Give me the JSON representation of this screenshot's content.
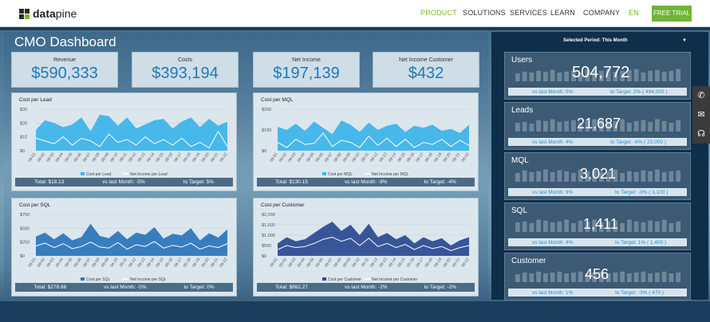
{
  "nav": {
    "brand_bold": "data",
    "brand_light": "pine",
    "product": "PRODUCT",
    "solutions": "SOLUTIONS",
    "services": "SERVICES",
    "learn": "LEARN",
    "company": "COMPANY",
    "lang": "EN",
    "trial": "FREE TRIAL"
  },
  "dashboard": {
    "title": "CMO Dashboard",
    "period": "Selected Period: This Month"
  },
  "kpis": [
    {
      "label": "Revenue",
      "value": "$590,333"
    },
    {
      "label": "Costs",
      "value": "$393,194"
    },
    {
      "label": "Net Income",
      "value": "$197,139"
    },
    {
      "label": "Net Income Customer",
      "value": "$432"
    }
  ],
  "chart_data": [
    {
      "type": "area",
      "title": "Cost per Lead",
      "categories": [
        "09-01",
        "09-02",
        "09-03",
        "09-04",
        "09-05",
        "09-06",
        "09-07",
        "09-08",
        "09-09",
        "09-10",
        "09-11",
        "09-12",
        "09-13",
        "09-14",
        "09-15",
        "09-16",
        "09-17",
        "09-18",
        "09-19",
        "09-20",
        "09-21",
        "09-22"
      ],
      "yticks": [
        "$30",
        "$20",
        "$10",
        "$0"
      ],
      "ylim": [
        0,
        30
      ],
      "series": [
        {
          "name": "Cost per Lead",
          "type": "area",
          "values": [
            15,
            22,
            20,
            17,
            19,
            24,
            14,
            26,
            25,
            18,
            24,
            16,
            19,
            22,
            23,
            16,
            21,
            24,
            17,
            23,
            18,
            21
          ]
        },
        {
          "name": "Net Income per Lead",
          "type": "line",
          "values": [
            9,
            7,
            5,
            10,
            4,
            9,
            7,
            3,
            12,
            6,
            8,
            4,
            10,
            5,
            8,
            4,
            9,
            3,
            6,
            2,
            14,
            3
          ]
        }
      ],
      "footer": {
        "total": "Total: $18.13",
        "vs_last": "vs last Month: -5%",
        "target": "to Target: 5%"
      }
    },
    {
      "type": "area",
      "title": "Cost per MQL",
      "categories": [
        "09-01",
        "09-02",
        "09-03",
        "09-04",
        "09-05",
        "09-06",
        "09-07",
        "09-08",
        "09-09",
        "09-10",
        "09-11",
        "09-12",
        "09-13",
        "09-14",
        "09-15",
        "09-16",
        "09-17",
        "09-18",
        "09-19",
        "09-20",
        "09-21",
        "09-22"
      ],
      "yticks": [
        "$200",
        "$100",
        "$0"
      ],
      "ylim": [
        0,
        200
      ],
      "series": [
        {
          "name": "Cost per MQL",
          "type": "area",
          "values": [
            115,
            100,
            130,
            95,
            140,
            110,
            80,
            145,
            125,
            90,
            135,
            100,
            120,
            130,
            90,
            120,
            110,
            125,
            95,
            105,
            85,
            125
          ]
        },
        {
          "name": "Net Income per MQL",
          "type": "line",
          "values": [
            40,
            15,
            55,
            30,
            35,
            85,
            20,
            50,
            40,
            15,
            70,
            25,
            60,
            20,
            55,
            15,
            40,
            30,
            55,
            20,
            50,
            25
          ]
        }
      ],
      "footer": {
        "total": "Total: $130.15",
        "vs_last": "vs last Month: -9%",
        "target": "to Target: -4%"
      }
    },
    {
      "type": "area",
      "title": "Cost per SQL",
      "categories": [
        "09-01",
        "09-02",
        "09-03",
        "09-04",
        "09-05",
        "09-06",
        "09-07",
        "09-08",
        "09-09",
        "09-10",
        "09-11",
        "09-12",
        "09-13",
        "09-14",
        "09-15",
        "09-16",
        "09-17",
        "09-18",
        "09-19",
        "09-20",
        "09-21",
        "09-22"
      ],
      "yticks": [
        "$750",
        "$500",
        "$250",
        "$0"
      ],
      "ylim": [
        0,
        750
      ],
      "series": [
        {
          "name": "Cost per SQL",
          "type": "area",
          "values": [
            350,
            420,
            300,
            410,
            280,
            340,
            580,
            360,
            320,
            450,
            300,
            420,
            380,
            520,
            310,
            400,
            370,
            500,
            280,
            410,
            330,
            480
          ]
        },
        {
          "name": "Net Income per SQL",
          "type": "line",
          "values": [
            180,
            230,
            150,
            220,
            130,
            170,
            250,
            160,
            140,
            240,
            120,
            200,
            170,
            260,
            140,
            190,
            160,
            230,
            120,
            180,
            150,
            220
          ]
        }
      ],
      "footer": {
        "total": "Total: $278.66",
        "vs_last": "vs last Month: -5%",
        "target": "to Target: 0%"
      }
    },
    {
      "type": "area",
      "title": "Cost per Customer",
      "categories": [
        "09-01",
        "09-02",
        "09-03",
        "09-04",
        "09-05",
        "09-06",
        "09-07",
        "09-08",
        "09-09",
        "09-10",
        "09-11",
        "09-12",
        "09-13",
        "09-14",
        "09-15",
        "09-16",
        "09-17",
        "09-18",
        "09-19",
        "09-20",
        "09-21",
        "09-22"
      ],
      "yticks": [
        "$2,000",
        "$1,500",
        "$1,000",
        "$500",
        "$0"
      ],
      "ylim": [
        0,
        2000
      ],
      "series": [
        {
          "name": "Cost per Customer",
          "type": "area",
          "values": [
            600,
            900,
            700,
            800,
            1100,
            1400,
            1650,
            1200,
            1500,
            1000,
            1550,
            900,
            1100,
            800,
            1000,
            600,
            900,
            700,
            850,
            500,
            750,
            900
          ]
        },
        {
          "name": "Net Income per Customer",
          "type": "line",
          "values": [
            300,
            500,
            400,
            450,
            600,
            800,
            900,
            700,
            850,
            500,
            850,
            450,
            600,
            400,
            550,
            300,
            500,
            350,
            450,
            250,
            400,
            500
          ]
        }
      ],
      "footer": {
        "total": "Total: $862.27",
        "vs_last": "vs last Month: -2%",
        "target": "to Target: -2%"
      }
    }
  ],
  "metrics": [
    {
      "label": "Users",
      "value": "504,772",
      "vs_last": "vs last Month: 5%",
      "target": "to Target: 2% ( 494,000 )",
      "bars": [
        0.45,
        0.55,
        0.5,
        0.6,
        0.55,
        0.65,
        0.5,
        0.55,
        0.6,
        0.5,
        0.7,
        0.65,
        0.6,
        0.7,
        0.55,
        0.6,
        0.65,
        0.7,
        0.5,
        0.6,
        0.65,
        0.55,
        0.6,
        0.7
      ]
    },
    {
      "label": "Leads",
      "value": "21,687",
      "vs_last": "vs last Month: 4%",
      "target": "to Target: -6% ( 23,000 )",
      "bars": [
        0.5,
        0.55,
        0.45,
        0.65,
        0.6,
        0.7,
        0.55,
        0.6,
        0.65,
        0.5,
        0.6,
        0.7,
        0.65,
        0.55,
        0.6,
        0.7,
        0.5,
        0.6,
        0.65,
        0.55,
        0.7,
        0.6,
        0.5,
        0.65
      ]
    },
    {
      "label": "MQL",
      "value": "3,021",
      "vs_last": "vs last Month: 9%",
      "target": "to Target: -3% ( 3,100 )",
      "bars": [
        0.5,
        0.65,
        0.55,
        0.6,
        0.7,
        0.55,
        0.65,
        0.6,
        0.5,
        0.7,
        0.6,
        0.65,
        0.55,
        0.6,
        0.7,
        0.5,
        0.6,
        0.55,
        0.65,
        0.6,
        0.7,
        0.55,
        0.6,
        0.65
      ]
    },
    {
      "label": "SQL",
      "value": "1,411",
      "vs_last": "vs last Month: 4%",
      "target": "to Target: 1% ( 1,400 )",
      "bars": [
        0.55,
        0.6,
        0.5,
        0.7,
        0.65,
        0.55,
        0.6,
        0.7,
        0.5,
        0.65,
        0.6,
        0.7,
        0.55,
        0.6,
        0.65,
        0.5,
        0.7,
        0.6,
        0.55,
        0.65,
        0.6,
        0.7,
        0.5,
        0.6
      ]
    },
    {
      "label": "Customer",
      "value": "456",
      "vs_last": "vs last Month: 1%",
      "target": "to Target: -3% ( 470 )",
      "bars": [
        0.45,
        0.55,
        0.5,
        0.6,
        0.5,
        0.55,
        0.6,
        0.5,
        0.55,
        0.6,
        0.5,
        0.55,
        0.6,
        0.5,
        0.55,
        0.6,
        0.5,
        0.55,
        0.6,
        0.5,
        0.55,
        0.6,
        0.5,
        0.55
      ]
    }
  ],
  "colors": {
    "accent": "#7cb527",
    "kpi_value": "#1f7ab5",
    "area_light": "#3fb4ea",
    "area_dark": "#2d78bd",
    "area_navy": "#2e4d95"
  }
}
